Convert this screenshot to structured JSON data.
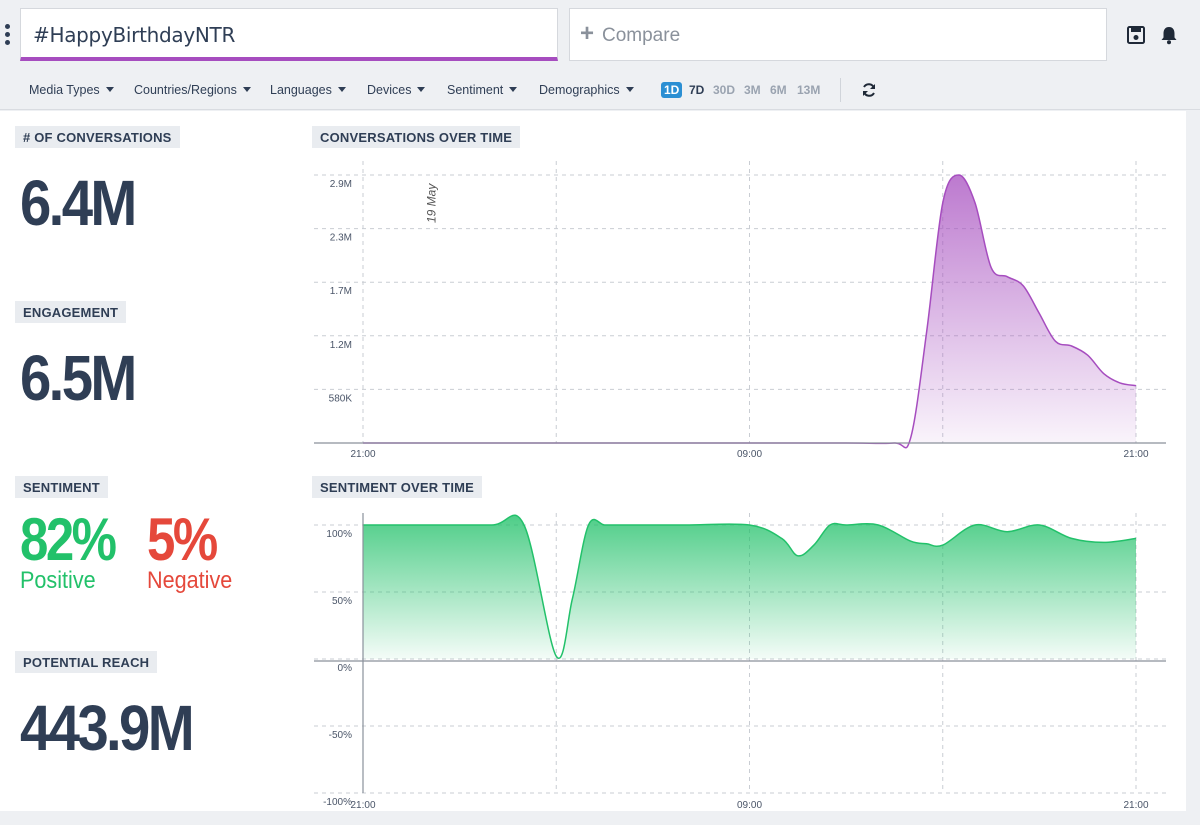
{
  "search": {
    "query": "#HappyBirthdayNTR"
  },
  "compare": {
    "label": "Compare"
  },
  "filters": [
    {
      "label": "Media Types"
    },
    {
      "label": "Countries/Regions"
    },
    {
      "label": "Languages"
    },
    {
      "label": "Devices"
    },
    {
      "label": "Sentiment"
    },
    {
      "label": "Demographics"
    }
  ],
  "ranges": [
    {
      "label": "1D",
      "active": true
    },
    {
      "label": "7D",
      "active": false
    },
    {
      "label": "30D",
      "active": false
    },
    {
      "label": "3M",
      "active": false
    },
    {
      "label": "6M",
      "active": false
    },
    {
      "label": "13M",
      "active": false
    }
  ],
  "icons": {
    "menu": "kebab-icon",
    "save": "save-icon",
    "alerts": "bell-icon",
    "refresh": "refresh-icon",
    "compare": "plus-icon"
  },
  "metrics": {
    "conversations": {
      "label": "# OF CONVERSATIONS",
      "value": "6.4M"
    },
    "engagement": {
      "label": "ENGAGEMENT",
      "value": "6.5M"
    },
    "sentiment": {
      "label": "SENTIMENT",
      "positive_value": "82%",
      "positive_label": "Positive",
      "negative_value": "5%",
      "negative_label": "Negative"
    },
    "reach": {
      "label": "POTENTIAL REACH",
      "value": "443.9M"
    }
  },
  "colors": {
    "accent_purple": "#a64dbf",
    "positive": "#22c16a",
    "negative": "#e5483b",
    "text": "#2f3e55",
    "active_range": "#2b8fd3"
  },
  "chart_data": [
    {
      "type": "area",
      "title": "CONVERSATIONS OVER TIME",
      "annotation": "19 May",
      "x_tick_labels": [
        "21:00",
        "09:00",
        "21:00"
      ],
      "y_tick_labels": [
        "580K",
        "1.2M",
        "1.7M",
        "2.3M",
        "2.9M"
      ],
      "ylim": [
        0,
        2900000
      ],
      "series": [
        {
          "x_hours": [
            0,
            3,
            6,
            9,
            12,
            15,
            16.5,
            17,
            17.5,
            18,
            18.5,
            19,
            19.5,
            20,
            20.5,
            21,
            21.5,
            22,
            22.5,
            23,
            23.5,
            24
          ],
          "values": [
            0,
            0,
            0,
            0,
            0,
            0,
            0,
            50000,
            1200000,
            2600000,
            2900000,
            2600000,
            1900000,
            1800000,
            1700000,
            1400000,
            1100000,
            1050000,
            950000,
            750000,
            650000,
            620000
          ]
        }
      ],
      "grid": true
    },
    {
      "type": "area",
      "title": "SENTIMENT OVER TIME",
      "x_tick_labels": [
        "21:00",
        "09:00",
        "21:00"
      ],
      "y_tick_labels": [
        "100%",
        "50%",
        "0%",
        "-50%",
        "-100%"
      ],
      "ylim": [
        -100,
        100
      ],
      "series": [
        {
          "x_hours": [
            0,
            2,
            4,
            5,
            6,
            6.5,
            7,
            7.5,
            8,
            10,
            12,
            13,
            13.5,
            14,
            14.5,
            15,
            16,
            17,
            17.5,
            18,
            19,
            20,
            21,
            22,
            23,
            24
          ],
          "values": [
            100,
            100,
            100,
            100,
            2,
            45,
            100,
            100,
            100,
            100,
            100,
            90,
            77,
            85,
            100,
            100,
            100,
            88,
            86,
            85,
            100,
            95,
            100,
            90,
            87,
            90
          ]
        }
      ],
      "grid": true
    }
  ]
}
